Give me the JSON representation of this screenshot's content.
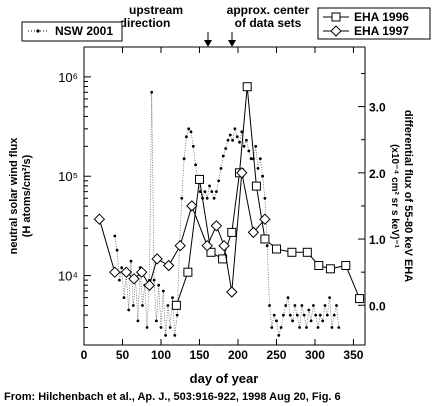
{
  "chart_data": {
    "type": "line",
    "xlabel": "day of year",
    "x_ticks": [
      0,
      50,
      100,
      150,
      200,
      250,
      300,
      350
    ],
    "xlim": [
      0,
      365
    ],
    "left_axis": {
      "label_line1": "neutral solar wind flux",
      "label_line2": "(H atoms/cm²/s)",
      "scale": "log",
      "ylim": [
        2000,
        2000000
      ],
      "tick_labels": [
        "10⁴",
        "10⁵",
        "10⁶"
      ],
      "tick_values": [
        10000,
        100000,
        1000000
      ]
    },
    "right_axis": {
      "label_line1": "differential flux of 55-80 keV EHA",
      "label_line2": "(x10⁻⁴ cm² sr s keV)⁻¹",
      "ylim": [
        -0.6,
        3.9
      ],
      "tick_labels": [
        "0.0",
        "1.0",
        "2.0",
        "3.0"
      ],
      "tick_values": [
        0,
        1,
        2,
        3
      ]
    },
    "annotations": [
      {
        "lines": [
          "upstream",
          "direction"
        ],
        "x": 157
      },
      {
        "lines": [
          "approx. center",
          "of data sets"
        ],
        "x": 170
      }
    ],
    "legend_left": "top-left",
    "legend_right": "top-right",
    "series": [
      {
        "name": "NSW 2001",
        "axis": "left",
        "marker": "dot",
        "style": "dotted",
        "x": [
          40,
          43,
          46,
          49,
          52,
          55,
          58,
          61,
          64,
          67,
          70,
          73,
          76,
          79,
          82,
          85,
          88,
          91,
          94,
          97,
          100,
          103,
          106,
          109,
          112,
          115,
          118,
          121,
          124,
          127,
          130,
          133,
          136,
          139,
          142,
          145,
          148,
          151,
          154,
          157,
          160,
          163,
          166,
          169,
          172,
          175,
          178,
          181,
          184,
          187,
          190,
          193,
          196,
          199,
          202,
          205,
          208,
          211,
          214,
          217,
          220,
          223,
          226,
          229,
          232,
          235,
          238,
          241,
          244,
          247,
          250,
          253,
          256,
          259,
          262,
          265,
          268,
          271,
          274,
          277,
          280,
          283,
          286,
          289,
          292,
          295,
          298,
          301,
          304,
          307,
          310,
          313,
          316,
          319,
          322,
          325,
          328,
          331
        ],
        "y": [
          25000,
          18000,
          9000,
          12000,
          6000,
          10000,
          4500,
          14000,
          5000,
          9000,
          3500,
          12000,
          5000,
          8000,
          3000,
          9000,
          700000,
          9000,
          3500,
          8000,
          3000,
          7000,
          2500,
          5000,
          3000,
          6000,
          2500,
          4000,
          20000,
          60000,
          150000,
          250000,
          300000,
          280000,
          200000,
          130000,
          90000,
          70000,
          60000,
          70000,
          60000,
          80000,
          70000,
          60000,
          70000,
          90000,
          120000,
          160000,
          190000,
          230000,
          260000,
          230000,
          300000,
          250000,
          220000,
          280000,
          200000,
          230000,
          180000,
          150000,
          150000,
          200000,
          120000,
          150000,
          100000,
          60000,
          20000,
          5000,
          3000,
          4000,
          3500,
          2500,
          3000,
          4000,
          5000,
          6000,
          4000,
          3500,
          5000,
          4000,
          3000,
          5000,
          4000,
          3000,
          4500,
          3500,
          5000,
          4000,
          3000,
          4000,
          3500,
          5000,
          4000,
          6000,
          3000,
          4000,
          5000,
          3000
        ]
      },
      {
        "name": "EHA 1996",
        "axis": "right",
        "marker": "square",
        "style": "solid",
        "x": [
          120,
          135,
          150,
          165,
          180,
          192,
          202,
          212,
          224,
          235,
          250,
          270,
          290,
          305,
          320,
          340,
          358
        ],
        "y": [
          0.0,
          0.5,
          1.9,
          0.8,
          0.7,
          1.1,
          2.0,
          3.3,
          1.8,
          1.0,
          0.85,
          0.8,
          0.8,
          0.6,
          0.55,
          0.6,
          0.1
        ]
      },
      {
        "name": "EHA 1997",
        "axis": "right",
        "marker": "diamond",
        "style": "solid",
        "x": [
          20,
          40,
          55,
          65,
          75,
          85,
          95,
          110,
          125,
          140,
          160,
          172,
          182,
          192,
          205,
          220,
          235
        ],
        "y": [
          1.3,
          0.5,
          0.5,
          0.4,
          0.5,
          0.3,
          0.7,
          0.6,
          0.9,
          1.5,
          0.9,
          1.2,
          0.9,
          0.2,
          2.0,
          1.1,
          1.3
        ]
      }
    ]
  },
  "caption": "From: Hilchenbach et al., Ap. J., 503:916-922, 1998 Aug 20, Fig. 6"
}
